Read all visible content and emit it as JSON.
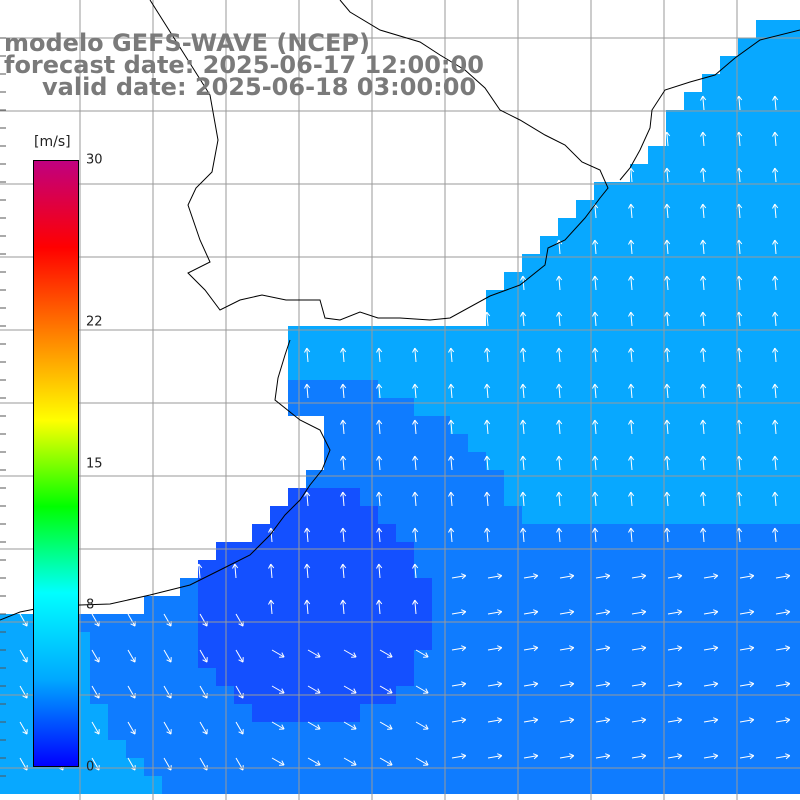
{
  "header": {
    "title_line1": "modelo GEFS-WAVE (NCEP)",
    "title_line2": "forecast date: 2025-06-17 12:00:00",
    "title_line3": "valid date: 2025-06-18 03:00:00"
  },
  "colorbar": {
    "unit": "[m/s]",
    "ticks": [
      {
        "value": 30,
        "label": "30"
      },
      {
        "value": 22,
        "label": "22"
      },
      {
        "value": 15,
        "label": "15"
      },
      {
        "value": 8,
        "label": "8"
      },
      {
        "value": 0,
        "label": "0"
      }
    ],
    "min": 0,
    "max": 30,
    "colors": [
      "#0000ff",
      "#00a8ff",
      "#00ffff",
      "#00ff00",
      "#ffff00",
      "#ff8000",
      "#ff0000",
      "#c00080"
    ]
  },
  "map": {
    "land_color": "#ffffff",
    "grid_color": "#9a9a9a",
    "coast_color": "#000000",
    "sea_colors": {
      "light": "#08a8ff",
      "mid": "#0f7cff",
      "dark": "#1450ff"
    },
    "arrow_color": "#ffffff"
  }
}
